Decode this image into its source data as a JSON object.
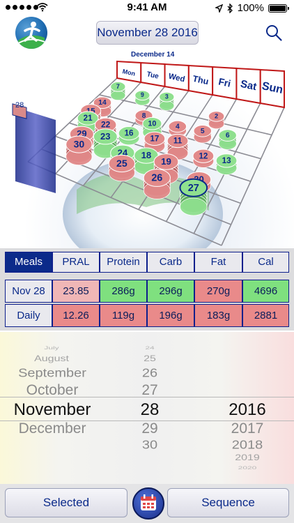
{
  "status_bar": {
    "time": "9:41 AM",
    "battery": "100%",
    "icons": [
      "signal-dots-icon",
      "wifi-icon",
      "location-arrow-icon",
      "bluetooth-icon",
      "battery-icon"
    ]
  },
  "nav": {
    "date_label": "November 28 2016",
    "logo_icon": "runner-logo-icon",
    "search_icon": "search-icon"
  },
  "calendar3d": {
    "month_caption": "December 14",
    "weekday_headers": [
      "Mon",
      "Tue",
      "Wed",
      "Thu",
      "Fri",
      "Sat",
      "Sun"
    ],
    "highlighted_day": "27",
    "side_day": "28",
    "days": [
      {
        "day": "7",
        "color": "green"
      },
      {
        "day": "9",
        "color": "green"
      },
      {
        "day": "3",
        "color": "green"
      },
      {
        "day": "14",
        "color": "red"
      },
      {
        "day": "15",
        "color": "red"
      },
      {
        "day": "8",
        "color": "red"
      },
      {
        "day": "10",
        "color": "green"
      },
      {
        "day": "4",
        "color": "red"
      },
      {
        "day": "5",
        "color": "red"
      },
      {
        "day": "6",
        "color": "green"
      },
      {
        "day": "21",
        "color": "green"
      },
      {
        "day": "22",
        "color": "red"
      },
      {
        "day": "16",
        "color": "green"
      },
      {
        "day": "17",
        "color": "red"
      },
      {
        "day": "11",
        "color": "red"
      },
      {
        "day": "12",
        "color": "red"
      },
      {
        "day": "13",
        "color": "green"
      },
      {
        "day": "29",
        "color": "red"
      },
      {
        "day": "23",
        "color": "green"
      },
      {
        "day": "24",
        "color": "green"
      },
      {
        "day": "18",
        "color": "green"
      },
      {
        "day": "30",
        "color": "red"
      },
      {
        "day": "25",
        "color": "red"
      },
      {
        "day": "19",
        "color": "red"
      },
      {
        "day": "20",
        "color": "red"
      },
      {
        "day": "26",
        "color": "red"
      },
      {
        "day": "27",
        "color": "green"
      },
      {
        "day": "2",
        "color": "red"
      }
    ]
  },
  "tabs": [
    {
      "label": "Meals",
      "active": true
    },
    {
      "label": "PRAL",
      "active": false
    },
    {
      "label": "Protein",
      "active": false
    },
    {
      "label": "Carb",
      "active": false
    },
    {
      "label": "Fat",
      "active": false
    },
    {
      "label": "Cal",
      "active": false
    }
  ],
  "table": {
    "rows": [
      {
        "label": "Nov 28",
        "cells": [
          {
            "value": "23.85",
            "color": "#f0b6b6"
          },
          {
            "value": "286g",
            "color": "#7fe07f"
          },
          {
            "value": "296g",
            "color": "#7fe07f"
          },
          {
            "value": "270g",
            "color": "#e98a8a"
          },
          {
            "value": "4696",
            "color": "#7fe07f"
          }
        ]
      },
      {
        "label": "Daily AVG",
        "cells": [
          {
            "value": "12.26",
            "color": "#e98a8a"
          },
          {
            "value": "119g",
            "color": "#e98a8a"
          },
          {
            "value": "196g",
            "color": "#e98a8a"
          },
          {
            "value": "183g",
            "color": "#e98a8a"
          },
          {
            "value": "2881",
            "color": "#e98a8a"
          }
        ]
      }
    ]
  },
  "picker": {
    "months": [
      "July",
      "August",
      "September",
      "October",
      "November",
      "December"
    ],
    "days": [
      "24",
      "25",
      "26",
      "27",
      "28",
      "29",
      "30"
    ],
    "years": [
      "2016",
      "2017",
      "2018",
      "2019",
      "2020"
    ],
    "selected_month": "November",
    "selected_day": "28",
    "selected_year": "2016"
  },
  "bottom_bar": {
    "selected_label": "Selected",
    "sequence_label": "Sequence",
    "calendar_icon": "calendar-icon"
  },
  "colors": {
    "accent_blue": "#0b2a8a",
    "good_green": "#7fe07f",
    "bad_red": "#e98a8a"
  }
}
